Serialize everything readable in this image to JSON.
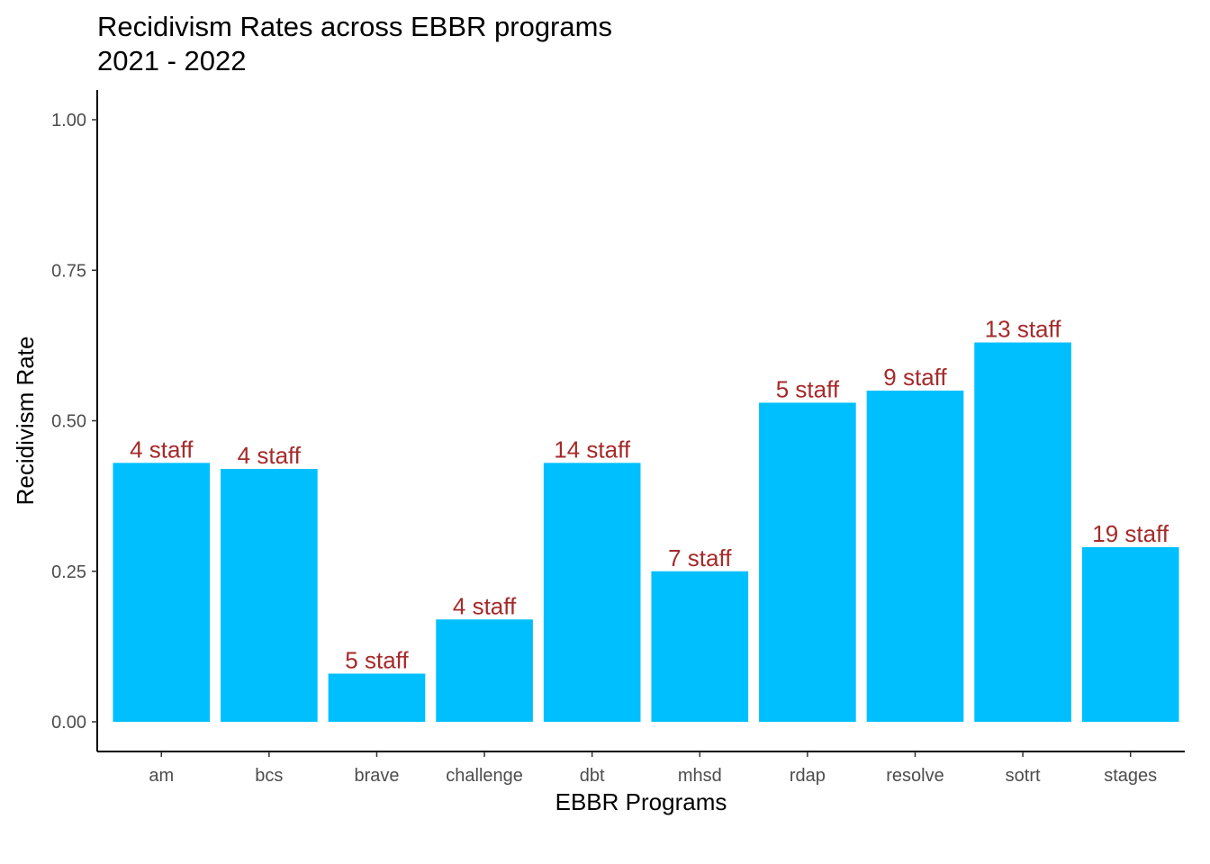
{
  "chart_data": {
    "type": "bar",
    "title": "Recidivism Rates across EBBR programs",
    "subtitle": "2021 - 2022",
    "xlabel": "EBBR Programs",
    "ylabel": "Recidivism Rate",
    "categories": [
      "am",
      "bcs",
      "brave",
      "challenge",
      "dbt",
      "mhsd",
      "rdap",
      "resolve",
      "sotrt",
      "stages"
    ],
    "values": [
      0.43,
      0.42,
      0.08,
      0.17,
      0.43,
      0.25,
      0.53,
      0.55,
      0.63,
      0.29
    ],
    "bar_labels": [
      "4 staff",
      "4 staff",
      "5 staff",
      "4 staff",
      "14 staff",
      "7 staff",
      "5 staff",
      "9 staff",
      "13 staff",
      "19 staff"
    ],
    "ylim": [
      0,
      1
    ],
    "yticks": [
      0,
      0.25,
      0.5,
      0.75,
      1.0
    ],
    "ytick_labels": [
      "0.00",
      "0.25",
      "0.50",
      "0.75",
      "1.00"
    ],
    "grid": false,
    "bar_color": "#00BFFF",
    "label_color": "#A52A2A",
    "axis_color": "#000000"
  }
}
